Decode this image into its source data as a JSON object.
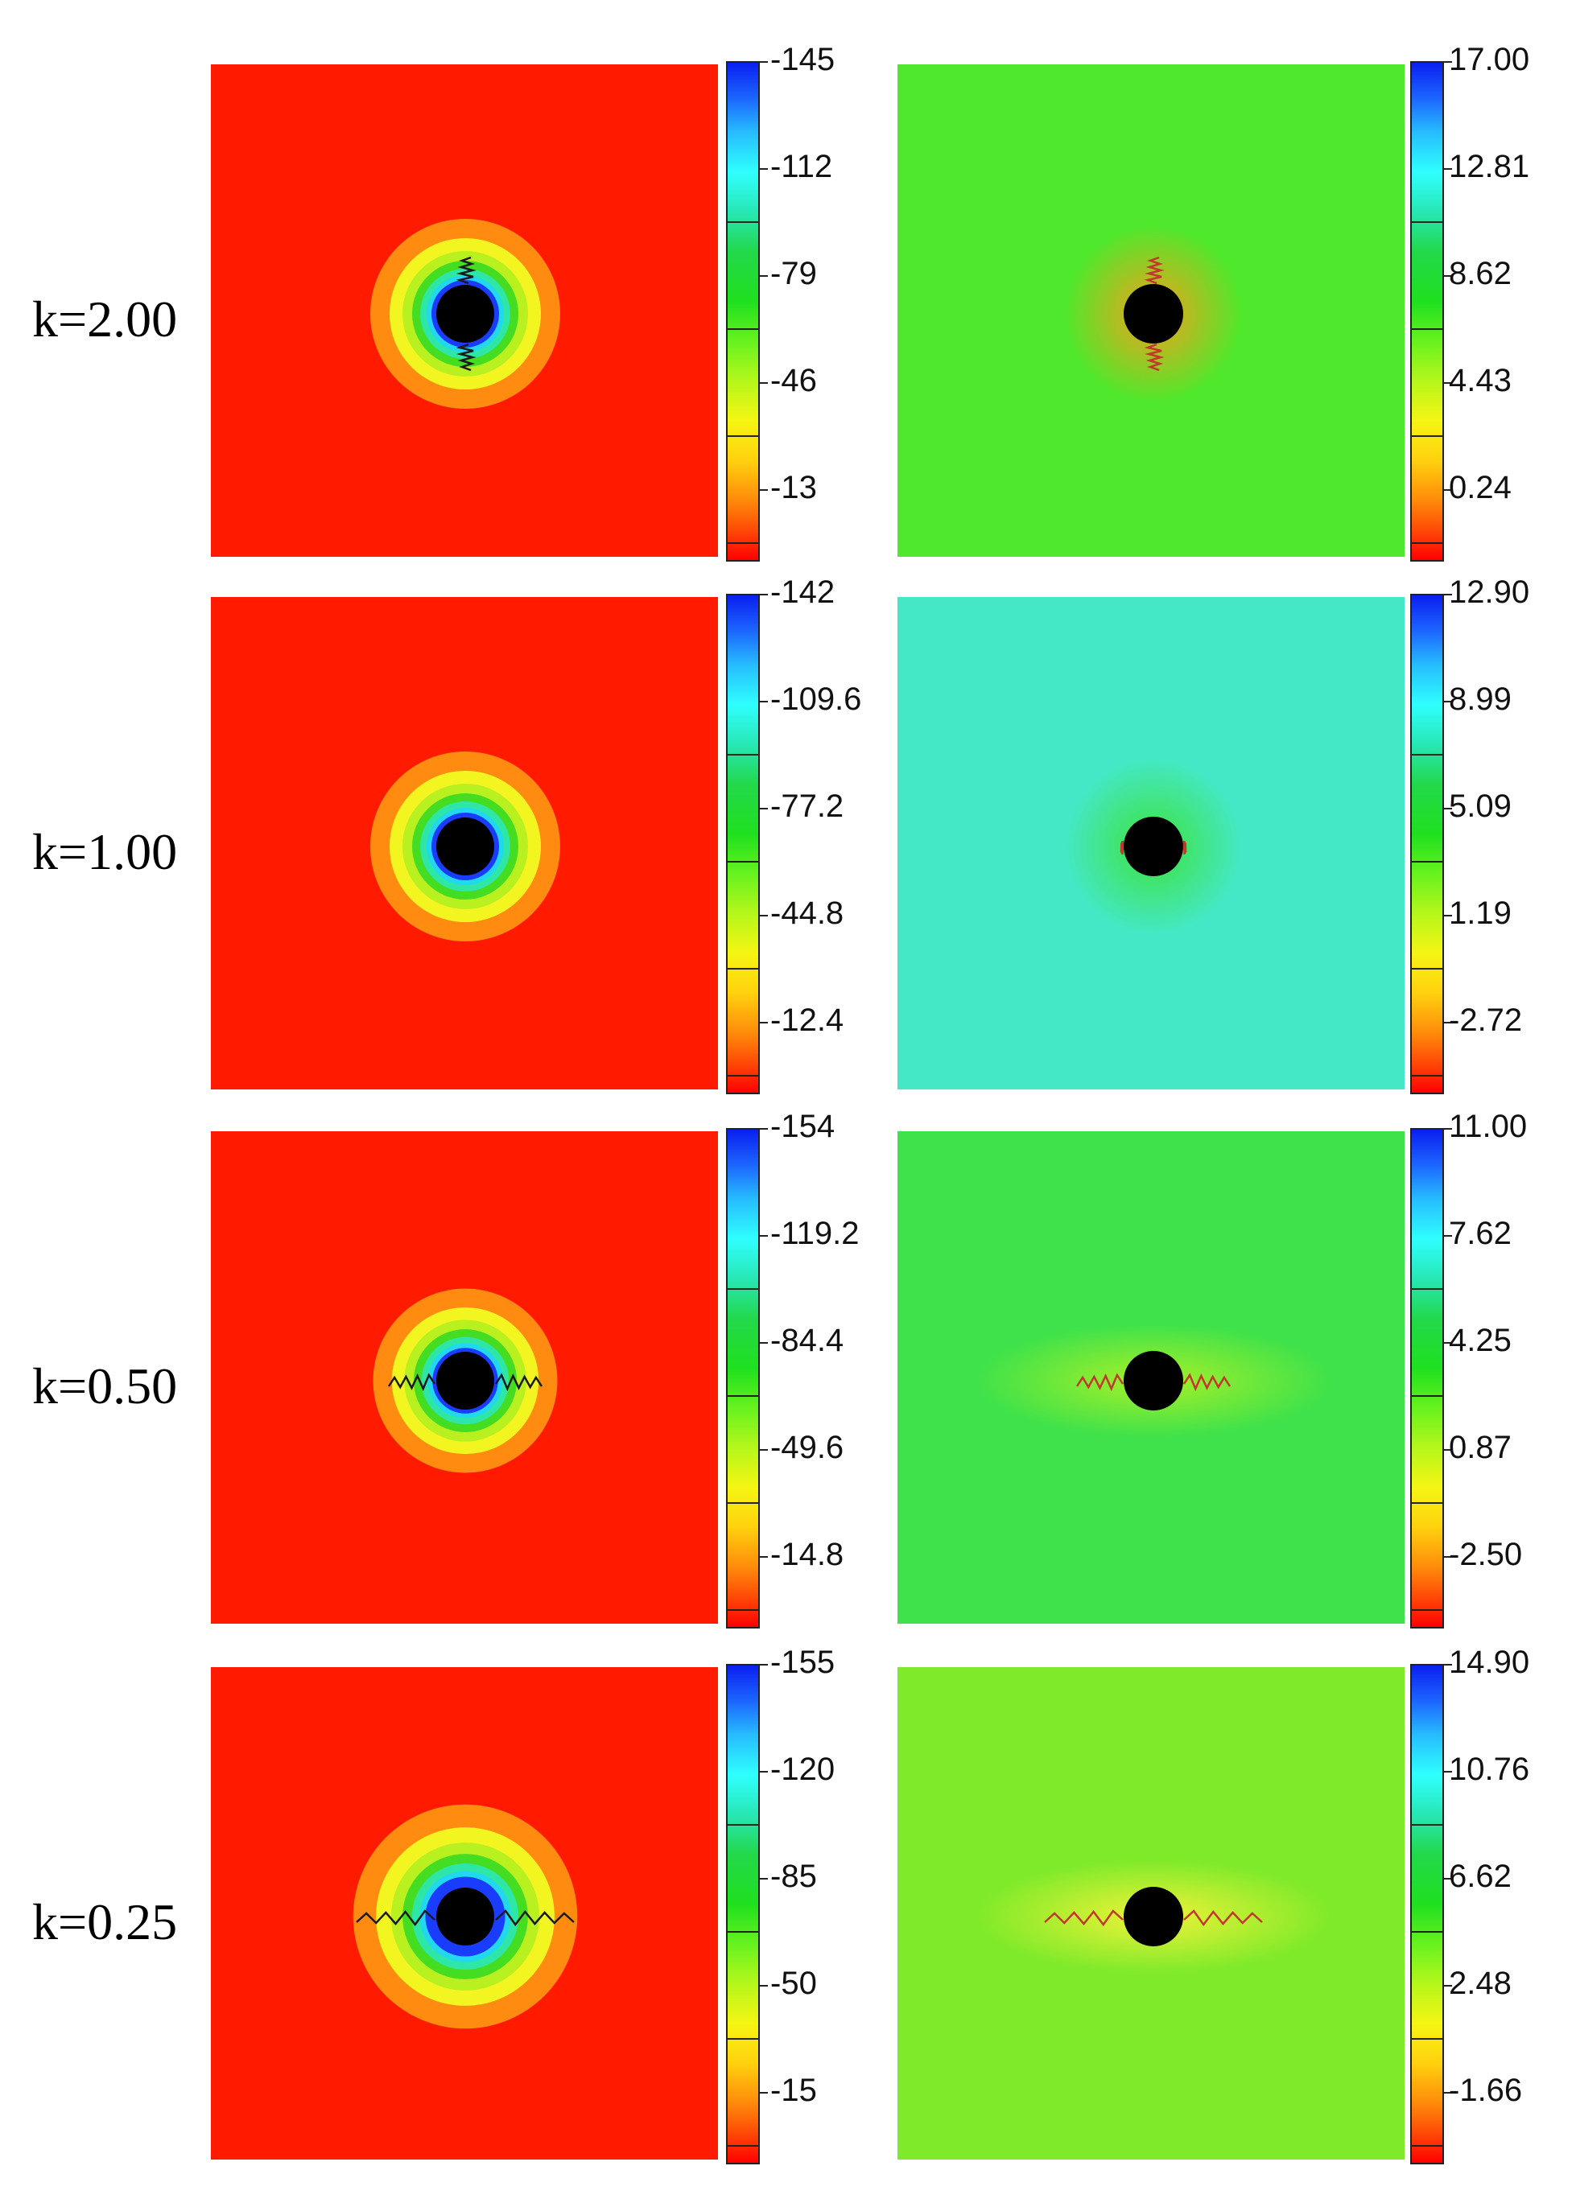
{
  "rows": [
    {
      "k_label": "k=2.00",
      "left_colorbar": {
        "labels": [
          "-145",
          "-112",
          "-79",
          "-46",
          "-13"
        ]
      },
      "right_colorbar": {
        "labels": [
          "17.00",
          "12.81",
          "8.62",
          "4.43",
          "0.24"
        ]
      },
      "left_field": {
        "background": "#ff1a00",
        "ring_radius_scale": 1.0,
        "crack_extent": "short-vertical"
      },
      "right_field": {
        "background": "#4fe82c",
        "halo": "#f5a01a",
        "crack_extent": "short-vertical"
      }
    },
    {
      "k_label": "k=1.00",
      "left_colorbar": {
        "labels": [
          "-142",
          "-109.6",
          "-77.2",
          "-44.8",
          "-12.4"
        ]
      },
      "right_colorbar": {
        "labels": [
          "12.90",
          "8.99",
          "5.09",
          "1.19",
          "-2.72"
        ]
      },
      "left_field": {
        "background": "#ff1a00",
        "ring_radius_scale": 1.0,
        "crack_extent": "none"
      },
      "right_field": {
        "background": "#44e8c6",
        "halo": "#3ee23a",
        "crack_extent": "small"
      }
    },
    {
      "k_label": "k=0.50",
      "left_colorbar": {
        "labels": [
          "-154",
          "-119.2",
          "-84.4",
          "-49.6",
          "-14.8"
        ]
      },
      "right_colorbar": {
        "labels": [
          "11.00",
          "7.62",
          "4.25",
          "0.87",
          "-2.50"
        ]
      },
      "left_field": {
        "background": "#ff1a00",
        "ring_radius_scale": 0.97,
        "crack_extent": "medium-horizontal"
      },
      "right_field": {
        "background": "#3fe24a",
        "halo": "#a8f028",
        "crack_extent": "medium-horizontal"
      }
    },
    {
      "k_label": "k=0.25",
      "left_colorbar": {
        "labels": [
          "-155",
          "-120",
          "-85",
          "-50",
          "-15"
        ]
      },
      "right_colorbar": {
        "labels": [
          "14.90",
          "10.76",
          "6.62",
          "2.48",
          "-1.66"
        ]
      },
      "left_field": {
        "background": "#ff1a00",
        "ring_radius_scale": 1.18,
        "crack_extent": "long-horizontal"
      },
      "right_field": {
        "background": "#7fea2a",
        "halo": "#f0f238",
        "crack_extent": "long-horizontal"
      }
    }
  ],
  "colors": {
    "hole": "#000000",
    "ring_orange": "#ff8c10",
    "ring_yellow": "#f2f520",
    "ring_green": "#44dd22",
    "ring_cyan": "#22d8ee",
    "ring_blue": "#1a3cff"
  }
}
